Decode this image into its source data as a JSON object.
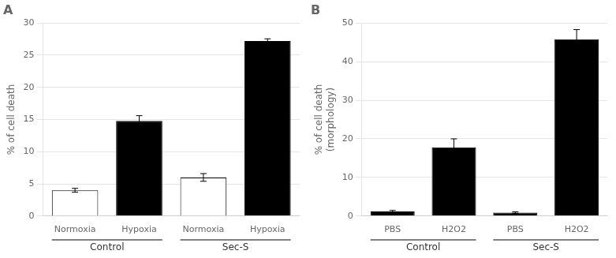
{
  "chart_data": [
    {
      "type": "bar",
      "title": "A",
      "categories": [
        "Normoxia",
        "Hypoxia",
        "Normoxia",
        "Hypoxia"
      ],
      "values": [
        4.0,
        14.8,
        6.0,
        27.2
      ],
      "errors": [
        0.3,
        0.8,
        0.6,
        0.35
      ],
      "colors": [
        "white",
        "black",
        "white",
        "black"
      ],
      "groups": [
        "Control",
        "Sec-S"
      ],
      "ylabel": "% of cell death",
      "ylim": [
        0,
        30
      ],
      "yticks": [
        0,
        5,
        10,
        15,
        20,
        25,
        30
      ],
      "grid": true
    },
    {
      "type": "bar",
      "title": "B",
      "categories": [
        "PBS",
        "H2O2",
        "PBS",
        "H2O2"
      ],
      "values": [
        1.2,
        17.8,
        0.9,
        45.8
      ],
      "errors": [
        0.25,
        2.2,
        0.2,
        2.5
      ],
      "colors": [
        "black",
        "black",
        "black",
        "black"
      ],
      "groups": [
        "Control",
        "Sec-S"
      ],
      "ylabel": "% of cell death\n(morphology)",
      "ylim": [
        0,
        50
      ],
      "yticks": [
        0,
        10,
        20,
        30,
        40,
        50
      ],
      "grid": true
    }
  ]
}
